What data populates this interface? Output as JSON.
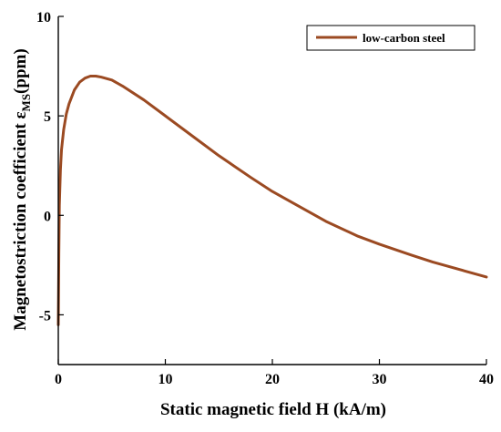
{
  "chart_data": {
    "type": "line",
    "title": "",
    "xlabel": "Static magnetic field H (kA/m)",
    "ylabel": {
      "prefix": "Magnetostriction coefficient ε",
      "subscript": "MS",
      "suffix": "(ppm)"
    },
    "xlim": [
      0,
      40
    ],
    "ylim": [
      -7.5,
      10
    ],
    "xticks": [
      0,
      10,
      20,
      30,
      40
    ],
    "yticks": [
      -5,
      0,
      5,
      10
    ],
    "grid": false,
    "legend_position": "top-right",
    "series": [
      {
        "name": "low-carbon steel",
        "color": "#9b4a22",
        "x": [
          0,
          0.05,
          0.1,
          0.2,
          0.3,
          0.5,
          0.75,
          1.0,
          1.5,
          2.0,
          2.5,
          3.0,
          3.5,
          4.0,
          5.0,
          6.0,
          8.0,
          10.0,
          12.0,
          15.0,
          18.0,
          20.0,
          22.0,
          25.0,
          28.0,
          30.0,
          33.0,
          35.0,
          38.0,
          40.0
        ],
        "y": [
          -5.5,
          -2.0,
          0.5,
          2.3,
          3.3,
          4.3,
          5.1,
          5.6,
          6.3,
          6.7,
          6.9,
          7.0,
          7.0,
          6.95,
          6.8,
          6.5,
          5.8,
          5.0,
          4.2,
          3.0,
          1.9,
          1.2,
          0.6,
          -0.3,
          -1.05,
          -1.45,
          -2.0,
          -2.35,
          -2.8,
          -3.1
        ]
      }
    ]
  }
}
